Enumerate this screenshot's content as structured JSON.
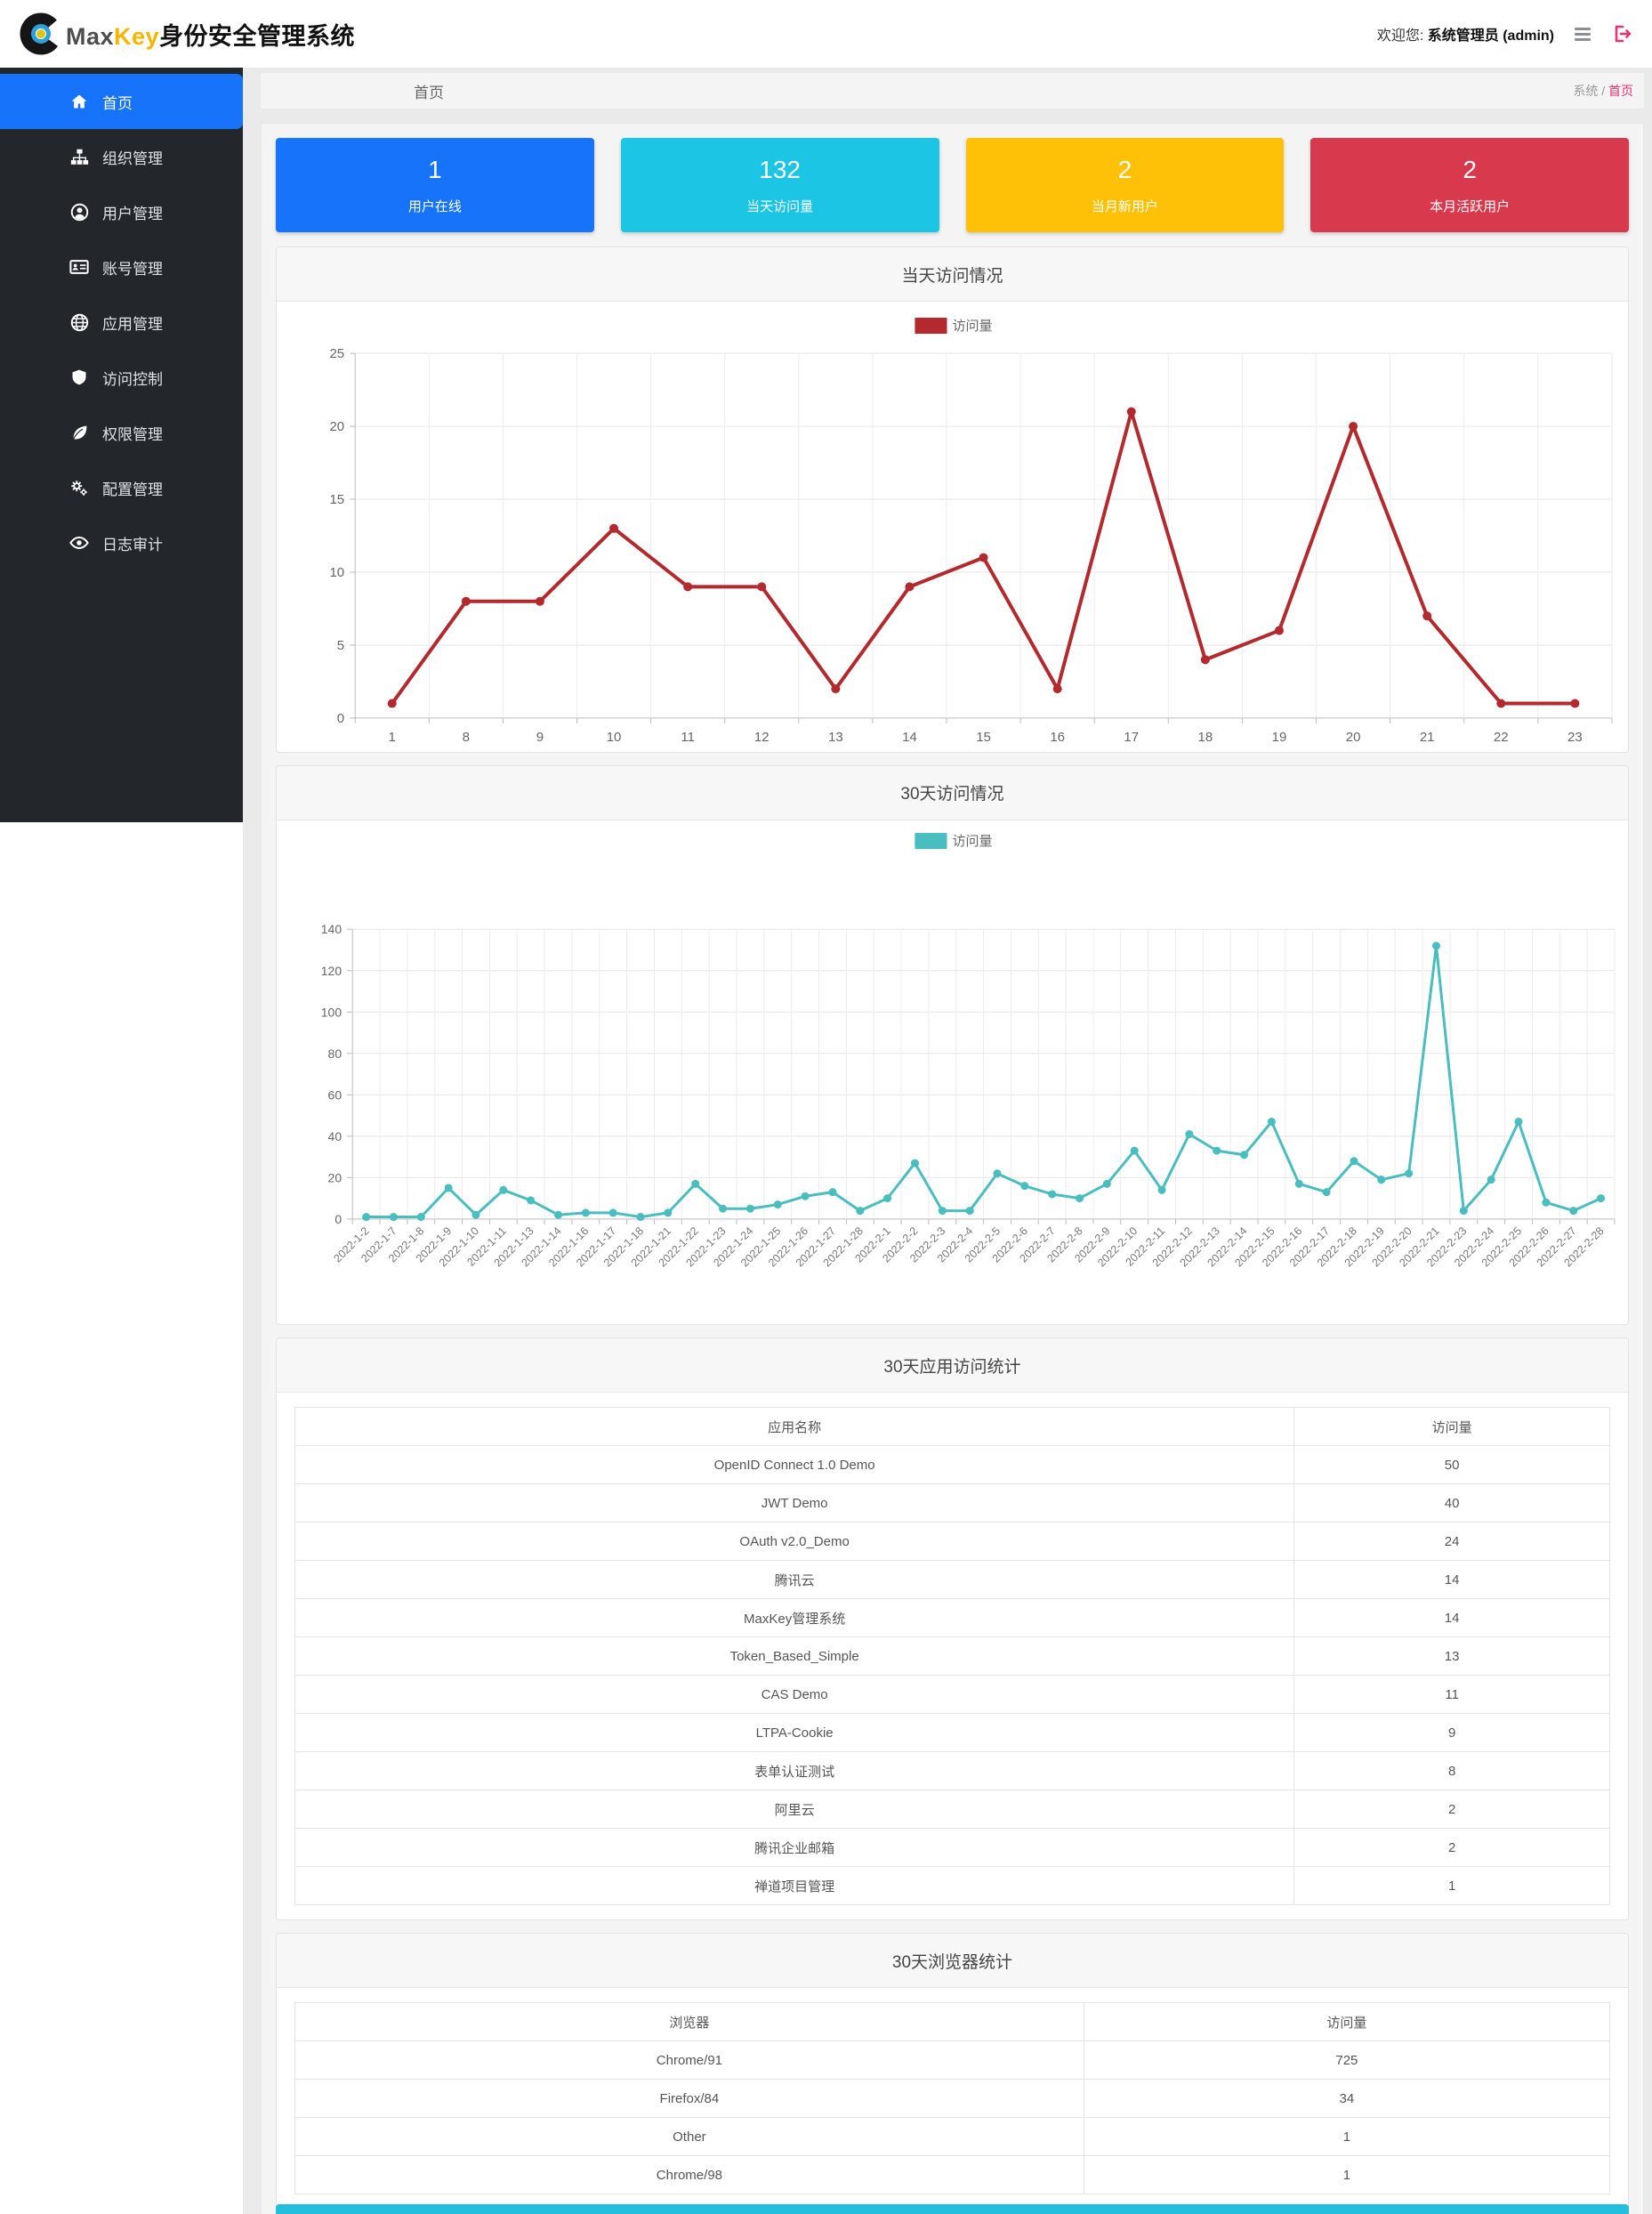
{
  "header": {
    "brand_max": "Max",
    "brand_key": "Key",
    "brand_suffix": "身份安全管理系统",
    "welcome_prefix": "欢迎您: ",
    "user": "系统管理员 (admin)"
  },
  "sidebar": {
    "items": [
      {
        "key": "home",
        "label": "首页",
        "icon": "home-icon",
        "active": true
      },
      {
        "key": "org",
        "label": "组织管理",
        "icon": "sitemap-icon",
        "active": false
      },
      {
        "key": "user",
        "label": "用户管理",
        "icon": "user-icon",
        "active": false
      },
      {
        "key": "account",
        "label": "账号管理",
        "icon": "id-card-icon",
        "active": false
      },
      {
        "key": "app",
        "label": "应用管理",
        "icon": "globe-icon",
        "active": false
      },
      {
        "key": "access",
        "label": "访问控制",
        "icon": "shield-icon",
        "active": false
      },
      {
        "key": "permission",
        "label": "权限管理",
        "icon": "leaf-icon",
        "active": false
      },
      {
        "key": "config",
        "label": "配置管理",
        "icon": "cogs-icon",
        "active": false
      },
      {
        "key": "audit",
        "label": "日志审计",
        "icon": "eye-icon",
        "active": false
      }
    ]
  },
  "breadcrumb": {
    "title": "首页",
    "path_root": "系统",
    "path_sep": " / ",
    "path_current": "首页"
  },
  "stats": [
    {
      "value": "1",
      "label": "用户在线",
      "color": "#1673fa"
    },
    {
      "value": "132",
      "label": "当天访问量",
      "color": "#1cc5e4"
    },
    {
      "value": "2",
      "label": "当月新用户",
      "color": "#ffc107"
    },
    {
      "value": "2",
      "label": "本月活跃用户",
      "color": "#d8394d"
    }
  ],
  "panels": {
    "apps": {
      "title": "30天应用访问统计",
      "columns": [
        "应用名称",
        "访问量"
      ],
      "rows": [
        [
          "OpenID Connect 1.0 Demo",
          "50"
        ],
        [
          "JWT Demo",
          "40"
        ],
        [
          "OAuth v2.0_Demo",
          "24"
        ],
        [
          "腾讯云",
          "14"
        ],
        [
          "MaxKey管理系统",
          "14"
        ],
        [
          "Token_Based_Simple",
          "13"
        ],
        [
          "CAS Demo",
          "11"
        ],
        [
          "LTPA-Cookie",
          "9"
        ],
        [
          "表单认证测试",
          "8"
        ],
        [
          "阿里云",
          "2"
        ],
        [
          "腾讯企业邮箱",
          "2"
        ],
        [
          "禅道项目管理",
          "1"
        ]
      ]
    },
    "browsers": {
      "title": "30天浏览器统计",
      "columns": [
        "浏览器",
        "访问量"
      ],
      "rows": [
        [
          "Chrome/91",
          "725"
        ],
        [
          "Firefox/84",
          "34"
        ],
        [
          "Other",
          "1"
        ],
        [
          "Chrome/98",
          "1"
        ]
      ]
    }
  },
  "chart_data": [
    {
      "type": "line",
      "title": "当天访问情况",
      "legend": "访问量",
      "color": "#b2292e",
      "categories": [
        "1",
        "8",
        "9",
        "10",
        "11",
        "12",
        "13",
        "14",
        "15",
        "16",
        "17",
        "18",
        "19",
        "20",
        "21",
        "22",
        "23"
      ],
      "values": [
        1,
        8,
        8,
        13,
        9,
        9,
        2,
        9,
        11,
        2,
        21,
        4,
        6,
        20,
        7,
        1,
        1
      ],
      "ylim": [
        0,
        25
      ],
      "ytick_step": 5,
      "x_label_rotate": 0,
      "grid": true,
      "legend_position": "top-center"
    },
    {
      "type": "line",
      "title": "30天访问情况",
      "legend": "访问量",
      "color": "#4abdbe",
      "categories": [
        "2022-1-2",
        "2022-1-7",
        "2022-1-8",
        "2022-1-9",
        "2022-1-10",
        "2022-1-11",
        "2022-1-13",
        "2022-1-14",
        "2022-1-16",
        "2022-1-17",
        "2022-1-18",
        "2022-1-21",
        "2022-1-22",
        "2022-1-23",
        "2022-1-24",
        "2022-1-25",
        "2022-1-26",
        "2022-1-27",
        "2022-1-28",
        "2022-2-1",
        "2022-2-2",
        "2022-2-3",
        "2022-2-4",
        "2022-2-5",
        "2022-2-6",
        "2022-2-7",
        "2022-2-8",
        "2022-2-9",
        "2022-2-10",
        "2022-2-11",
        "2022-2-12",
        "2022-2-13",
        "2022-2-14",
        "2022-2-15",
        "2022-2-16",
        "2022-2-17",
        "2022-2-18",
        "2022-2-19",
        "2022-2-20",
        "2022-2-21",
        "2022-2-23",
        "2022-2-24",
        "2022-2-25",
        "2022-2-26",
        "2022-2-27",
        "2022-2-28"
      ],
      "values": [
        1,
        1,
        1,
        15,
        2,
        14,
        9,
        2,
        3,
        3,
        1,
        3,
        17,
        5,
        5,
        7,
        11,
        13,
        4,
        10,
        27,
        4,
        4,
        22,
        16,
        12,
        10,
        17,
        33,
        14,
        41,
        33,
        31,
        47,
        17,
        13,
        28,
        19,
        22,
        132,
        4,
        19,
        47,
        8,
        4,
        10
      ],
      "ylim": [
        0,
        140
      ],
      "ytick_step": 20,
      "x_label_rotate": 45,
      "grid": true,
      "legend_position": "top-center"
    }
  ]
}
